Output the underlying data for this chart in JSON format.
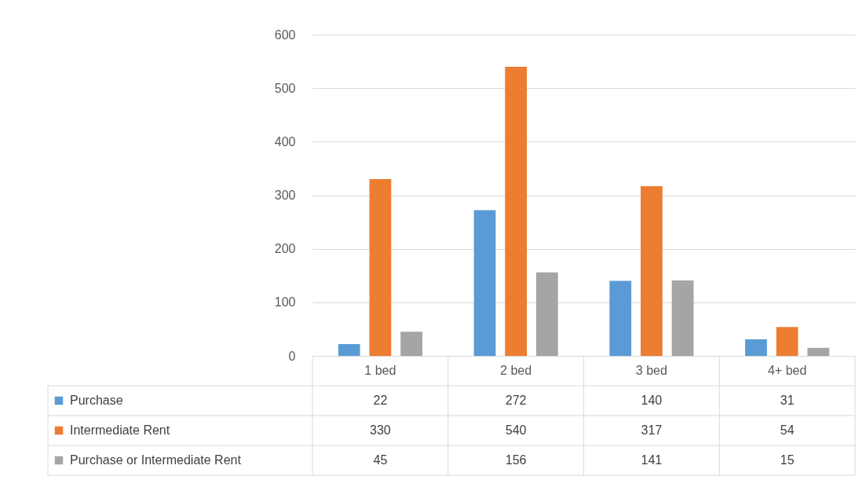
{
  "chart_data": {
    "type": "bar",
    "categories": [
      "1 bed",
      "2 bed",
      "3 bed",
      "4+ bed"
    ],
    "series": [
      {
        "name": "Purchase",
        "color": "#5b9bd5",
        "values": [
          22,
          272,
          140,
          31
        ]
      },
      {
        "name": "Intermediate Rent",
        "color": "#ed7d31",
        "values": [
          330,
          540,
          317,
          54
        ]
      },
      {
        "name": "Purchase or Intermediate Rent",
        "color": "#a5a5a5",
        "values": [
          45,
          156,
          141,
          15
        ]
      }
    ],
    "ylim": [
      0,
      600
    ],
    "yticks": [
      0,
      100,
      200,
      300,
      400,
      500,
      600
    ],
    "grid": "y",
    "legend": "bottom",
    "data_labels": true
  }
}
